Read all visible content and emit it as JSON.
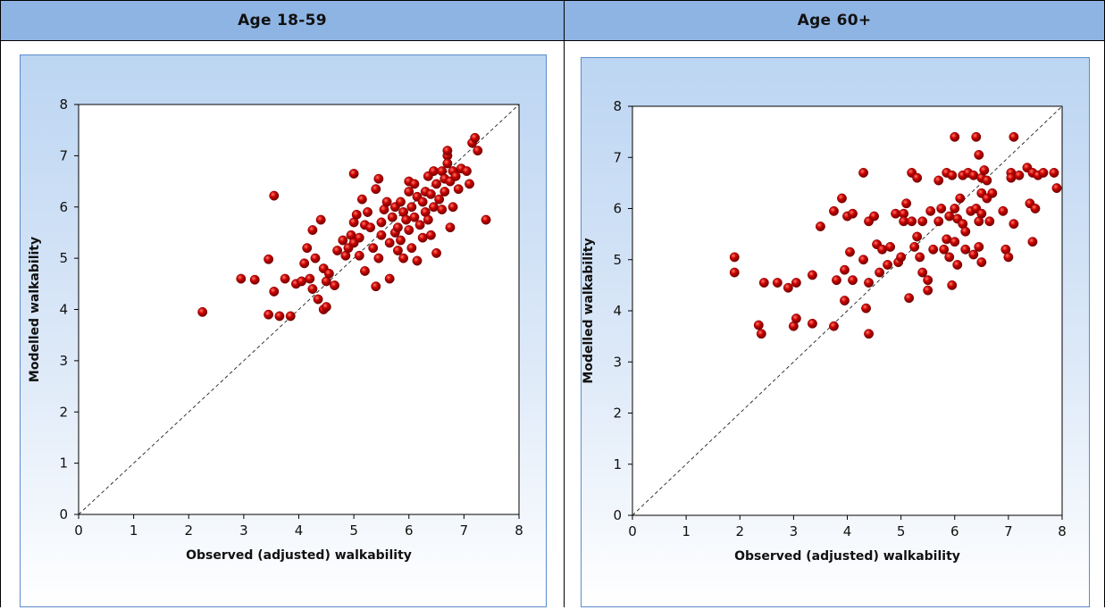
{
  "headers": [
    "Age 18-59",
    "Age 60+"
  ],
  "chart_data": [
    {
      "type": "scatter",
      "title": "",
      "xlabel": "Observed (adjusted) walkability",
      "ylabel": "Modelled walkability",
      "xlim": [
        0,
        8
      ],
      "ylim": [
        0,
        8
      ],
      "xticks": [
        "0",
        "1",
        "2",
        "3",
        "4",
        "5",
        "6",
        "7",
        "8"
      ],
      "yticks": [
        "0",
        "1",
        "2",
        "3",
        "4",
        "5",
        "6",
        "7",
        "8"
      ],
      "reference_line": "y = x",
      "grid": false,
      "marker_color": "#cc0000",
      "points": [
        [
          2.25,
          3.95
        ],
        [
          2.95,
          4.6
        ],
        [
          3.2,
          4.58
        ],
        [
          3.45,
          3.9
        ],
        [
          3.45,
          4.98
        ],
        [
          3.55,
          6.22
        ],
        [
          3.55,
          4.35
        ],
        [
          3.65,
          3.87
        ],
        [
          3.75,
          4.6
        ],
        [
          3.85,
          3.87
        ],
        [
          3.95,
          4.5
        ],
        [
          4.05,
          4.55
        ],
        [
          4.1,
          4.9
        ],
        [
          4.15,
          5.2
        ],
        [
          4.2,
          4.6
        ],
        [
          4.25,
          5.55
        ],
        [
          4.25,
          4.4
        ],
        [
          4.3,
          5.0
        ],
        [
          4.35,
          4.2
        ],
        [
          4.4,
          5.75
        ],
        [
          4.45,
          4.8
        ],
        [
          4.45,
          4.0
        ],
        [
          4.5,
          4.05
        ],
        [
          4.5,
          4.55
        ],
        [
          4.55,
          4.7
        ],
        [
          4.65,
          4.47
        ],
        [
          4.7,
          5.15
        ],
        [
          4.8,
          5.35
        ],
        [
          4.85,
          5.05
        ],
        [
          4.9,
          5.2
        ],
        [
          4.95,
          5.45
        ],
        [
          5.0,
          5.3
        ],
        [
          5.0,
          5.7
        ],
        [
          5.0,
          6.65
        ],
        [
          5.05,
          5.85
        ],
        [
          5.1,
          5.4
        ],
        [
          5.1,
          5.05
        ],
        [
          5.15,
          6.15
        ],
        [
          5.2,
          5.65
        ],
        [
          5.2,
          4.75
        ],
        [
          5.25,
          5.9
        ],
        [
          5.3,
          5.6
        ],
        [
          5.35,
          5.2
        ],
        [
          5.4,
          6.35
        ],
        [
          5.4,
          4.45
        ],
        [
          5.45,
          6.55
        ],
        [
          5.45,
          5.0
        ],
        [
          5.5,
          5.7
        ],
        [
          5.5,
          5.45
        ],
        [
          5.55,
          5.95
        ],
        [
          5.6,
          6.1
        ],
        [
          5.65,
          5.3
        ],
        [
          5.65,
          4.6
        ],
        [
          5.7,
          5.8
        ],
        [
          5.75,
          6.0
        ],
        [
          5.75,
          5.5
        ],
        [
          5.8,
          5.6
        ],
        [
          5.8,
          5.15
        ],
        [
          5.85,
          6.1
        ],
        [
          5.85,
          5.35
        ],
        [
          5.9,
          5.9
        ],
        [
          5.9,
          5.0
        ],
        [
          5.95,
          5.75
        ],
        [
          6.0,
          6.5
        ],
        [
          6.0,
          6.3
        ],
        [
          6.0,
          5.55
        ],
        [
          6.05,
          6.0
        ],
        [
          6.05,
          5.2
        ],
        [
          6.1,
          6.45
        ],
        [
          6.1,
          5.8
        ],
        [
          6.15,
          6.2
        ],
        [
          6.15,
          4.95
        ],
        [
          6.2,
          5.65
        ],
        [
          6.25,
          6.1
        ],
        [
          6.25,
          5.4
        ],
        [
          6.3,
          6.3
        ],
        [
          6.3,
          5.9
        ],
        [
          6.35,
          6.6
        ],
        [
          6.35,
          5.75
        ],
        [
          6.4,
          6.25
        ],
        [
          6.4,
          5.45
        ],
        [
          6.45,
          6.7
        ],
        [
          6.45,
          6.0
        ],
        [
          6.5,
          6.45
        ],
        [
          6.5,
          5.1
        ],
        [
          6.55,
          6.15
        ],
        [
          6.6,
          6.7
        ],
        [
          6.6,
          5.95
        ],
        [
          6.65,
          6.55
        ],
        [
          6.65,
          6.3
        ],
        [
          6.7,
          7.0
        ],
        [
          6.7,
          7.1
        ],
        [
          6.7,
          6.85
        ],
        [
          6.75,
          6.5
        ],
        [
          6.75,
          5.6
        ],
        [
          6.8,
          6.0
        ],
        [
          6.8,
          6.7
        ],
        [
          6.85,
          6.6
        ],
        [
          6.9,
          6.35
        ],
        [
          6.95,
          6.75
        ],
        [
          7.05,
          6.7
        ],
        [
          7.1,
          6.45
        ],
        [
          7.15,
          7.25
        ],
        [
          7.2,
          7.35
        ],
        [
          7.25,
          7.1
        ],
        [
          7.4,
          5.75
        ]
      ]
    },
    {
      "type": "scatter",
      "title": "",
      "xlabel": "Observed (adjusted) walkability",
      "ylabel": "Modelled walkability",
      "xlim": [
        0,
        8
      ],
      "ylim": [
        0,
        8
      ],
      "xticks": [
        "0",
        "1",
        "2",
        "3",
        "4",
        "5",
        "6",
        "7",
        "8"
      ],
      "yticks": [
        "0",
        "1",
        "2",
        "3",
        "4",
        "5",
        "6",
        "7",
        "8"
      ],
      "reference_line": "y = x",
      "grid": false,
      "marker_color": "#cc0000",
      "points": [
        [
          1.9,
          5.05
        ],
        [
          1.9,
          4.75
        ],
        [
          2.35,
          3.72
        ],
        [
          2.4,
          3.55
        ],
        [
          2.45,
          4.55
        ],
        [
          2.7,
          4.55
        ],
        [
          2.9,
          4.45
        ],
        [
          3.0,
          3.7
        ],
        [
          3.05,
          3.85
        ],
        [
          3.05,
          4.55
        ],
        [
          3.35,
          4.7
        ],
        [
          3.35,
          3.75
        ],
        [
          3.5,
          5.65
        ],
        [
          3.75,
          3.7
        ],
        [
          3.75,
          5.95
        ],
        [
          3.8,
          4.6
        ],
        [
          3.9,
          6.2
        ],
        [
          3.95,
          4.2
        ],
        [
          3.95,
          4.8
        ],
        [
          4.0,
          5.85
        ],
        [
          4.05,
          5.15
        ],
        [
          4.1,
          5.9
        ],
        [
          4.1,
          4.6
        ],
        [
          4.3,
          6.7
        ],
        [
          4.3,
          5.0
        ],
        [
          4.35,
          4.05
        ],
        [
          4.4,
          4.55
        ],
        [
          4.4,
          3.55
        ],
        [
          4.4,
          5.75
        ],
        [
          4.5,
          5.85
        ],
        [
          4.55,
          5.3
        ],
        [
          4.6,
          4.75
        ],
        [
          4.65,
          5.2
        ],
        [
          4.75,
          4.9
        ],
        [
          4.8,
          5.25
        ],
        [
          4.9,
          5.9
        ],
        [
          4.95,
          4.95
        ],
        [
          5.0,
          5.05
        ],
        [
          5.05,
          5.9
        ],
        [
          5.05,
          5.75
        ],
        [
          5.1,
          6.1
        ],
        [
          5.15,
          4.25
        ],
        [
          5.2,
          5.75
        ],
        [
          5.2,
          6.7
        ],
        [
          5.25,
          5.25
        ],
        [
          5.3,
          6.6
        ],
        [
          5.3,
          5.45
        ],
        [
          5.35,
          5.05
        ],
        [
          5.4,
          5.75
        ],
        [
          5.4,
          4.75
        ],
        [
          5.5,
          4.6
        ],
        [
          5.5,
          4.4
        ],
        [
          5.55,
          5.95
        ],
        [
          5.6,
          5.2
        ],
        [
          5.7,
          6.55
        ],
        [
          5.7,
          5.75
        ],
        [
          5.75,
          6.0
        ],
        [
          5.8,
          5.2
        ],
        [
          5.85,
          6.7
        ],
        [
          5.85,
          5.4
        ],
        [
          5.9,
          5.85
        ],
        [
          5.9,
          5.05
        ],
        [
          5.95,
          6.65
        ],
        [
          5.95,
          4.5
        ],
        [
          6.0,
          7.4
        ],
        [
          6.0,
          6.0
        ],
        [
          6.0,
          5.35
        ],
        [
          6.05,
          5.8
        ],
        [
          6.05,
          4.9
        ],
        [
          6.1,
          6.2
        ],
        [
          6.15,
          6.65
        ],
        [
          6.15,
          5.7
        ],
        [
          6.2,
          5.55
        ],
        [
          6.2,
          5.2
        ],
        [
          6.25,
          6.7
        ],
        [
          6.3,
          5.95
        ],
        [
          6.35,
          5.1
        ],
        [
          6.35,
          6.65
        ],
        [
          6.4,
          6.0
        ],
        [
          6.4,
          7.4
        ],
        [
          6.45,
          5.75
        ],
        [
          6.45,
          5.25
        ],
        [
          6.45,
          7.05
        ],
        [
          6.5,
          6.6
        ],
        [
          6.5,
          6.3
        ],
        [
          6.5,
          5.9
        ],
        [
          6.5,
          4.95
        ],
        [
          6.55,
          6.75
        ],
        [
          6.6,
          6.55
        ],
        [
          6.6,
          6.2
        ],
        [
          6.65,
          5.75
        ],
        [
          6.7,
          6.3
        ],
        [
          6.9,
          5.95
        ],
        [
          6.95,
          5.2
        ],
        [
          7.0,
          5.05
        ],
        [
          7.05,
          6.7
        ],
        [
          7.05,
          6.6
        ],
        [
          7.1,
          7.4
        ],
        [
          7.1,
          5.7
        ],
        [
          7.2,
          6.65
        ],
        [
          7.35,
          6.8
        ],
        [
          7.4,
          6.1
        ],
        [
          7.45,
          6.7
        ],
        [
          7.45,
          5.35
        ],
        [
          7.5,
          6.0
        ],
        [
          7.55,
          6.65
        ],
        [
          7.65,
          6.7
        ],
        [
          7.85,
          6.7
        ],
        [
          7.9,
          6.4
        ]
      ]
    }
  ]
}
